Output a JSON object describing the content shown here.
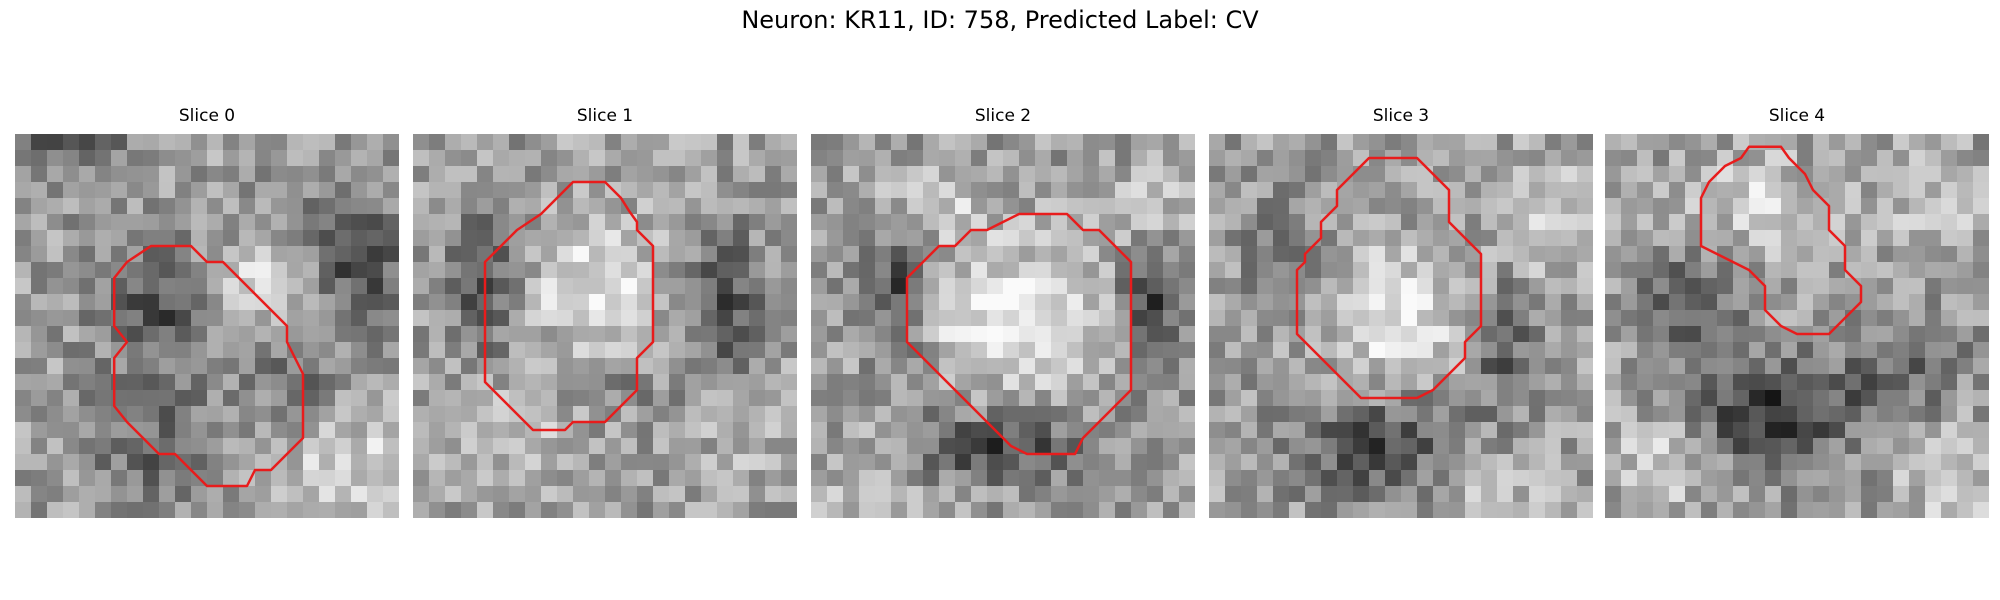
{
  "figure": {
    "title": "Neuron: KR11, ID: 758, Predicted Label: CV",
    "slices": [
      {
        "label": "Slice 0"
      },
      {
        "label": "Slice 1"
      },
      {
        "label": "Slice 2"
      },
      {
        "label": "Slice 3"
      },
      {
        "label": "Slice 4"
      }
    ],
    "contour_color": "#e81c1c",
    "colormap": "grayscale"
  }
}
